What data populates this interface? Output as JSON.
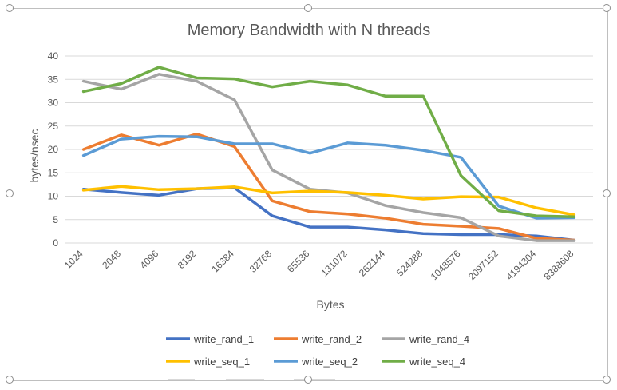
{
  "chart_data": {
    "type": "line",
    "title": "Memory Bandwidth with N threads",
    "xlabel": "Bytes",
    "ylabel": "bytes/nsec",
    "ylim": [
      0,
      40
    ],
    "yticks": [
      0,
      5,
      10,
      15,
      20,
      25,
      30,
      35,
      40
    ],
    "grid": true,
    "legend_position": "bottom",
    "categories": [
      "1024",
      "2048",
      "4096",
      "8192",
      "16384",
      "32768",
      "65536",
      "131072",
      "262144",
      "524288",
      "1048576",
      "2097152",
      "4194304",
      "8388608"
    ],
    "series": [
      {
        "name": "write_rand_1",
        "color": "#4472C4",
        "values": [
          11.5,
          10.8,
          10.2,
          11.6,
          11.8,
          5.8,
          3.4,
          3.4,
          2.8,
          2.0,
          1.8,
          1.8,
          1.5,
          0.6
        ]
      },
      {
        "name": "write_rand_2",
        "color": "#ED7D31",
        "values": [
          20.0,
          23.1,
          20.9,
          23.3,
          20.6,
          9.0,
          6.7,
          6.2,
          5.3,
          4.0,
          3.6,
          3.1,
          1.0,
          0.6
        ]
      },
      {
        "name": "write_rand_4",
        "color": "#A5A5A5",
        "values": [
          34.6,
          32.9,
          36.1,
          34.6,
          30.6,
          15.6,
          11.5,
          10.7,
          8.0,
          6.5,
          5.4,
          1.5,
          0.5,
          0.5
        ]
      },
      {
        "name": "write_seq_1",
        "color": "#FFC000",
        "values": [
          11.3,
          12.1,
          11.4,
          11.6,
          12.0,
          10.7,
          11.1,
          10.8,
          10.2,
          9.4,
          9.9,
          9.8,
          7.5,
          6.0
        ]
      },
      {
        "name": "write_seq_2",
        "color": "#5B9BD5",
        "values": [
          18.7,
          22.2,
          22.8,
          22.7,
          21.2,
          21.2,
          19.2,
          21.4,
          20.9,
          19.8,
          18.3,
          7.9,
          5.3,
          5.4
        ]
      },
      {
        "name": "write_seq_4",
        "color": "#70AD47",
        "values": [
          32.4,
          34.1,
          37.6,
          35.3,
          35.1,
          33.4,
          34.6,
          33.8,
          31.4,
          31.4,
          14.4,
          6.9,
          5.8,
          5.6
        ]
      }
    ]
  }
}
